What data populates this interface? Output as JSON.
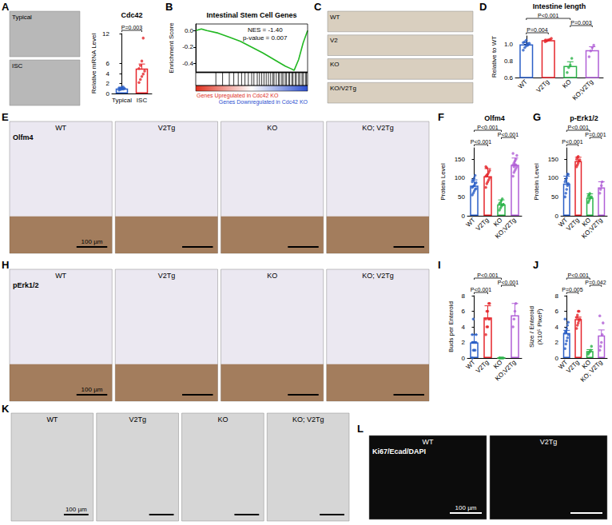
{
  "chart_data": [
    {
      "type": "bar",
      "title": "Cdc42",
      "y_label": "Relative mRNA Level",
      "categories": [
        "Typical",
        "ISC"
      ],
      "colors": [
        "#2b5fc7",
        "#e5252b"
      ],
      "values": [
        1.0,
        5.0
      ],
      "errors": [
        0.1,
        0.9
      ],
      "points": [
        [
          0.7,
          0.8,
          0.9,
          0.9,
          1.0,
          1.1,
          1.1,
          1.2,
          1.3
        ],
        [
          2.2,
          2.8,
          3.4,
          3.9,
          4.5,
          5.0,
          5.6,
          6.5,
          11.1
        ]
      ],
      "ylim": [
        0,
        12
      ],
      "yticks": [
        0,
        2,
        4,
        6,
        12
      ],
      "annotations": [
        {
          "groups": [
            0,
            1
          ],
          "text": "P=0.003"
        }
      ]
    },
    {
      "type": "line",
      "panel_label": "B",
      "title": "Intestinal Stem Cell Genes",
      "y_label": "Enrichment Score",
      "x": [
        0,
        5,
        10,
        20,
        30,
        40,
        50,
        60,
        70,
        80,
        85,
        88,
        92,
        96,
        100
      ],
      "values": [
        0,
        0.02,
        0.0,
        -0.03,
        -0.08,
        -0.13,
        -0.2,
        -0.27,
        -0.35,
        -0.43,
        -0.46,
        -0.48,
        -0.35,
        -0.15,
        0
      ],
      "color": "#22b822",
      "xlim": [
        0,
        100
      ],
      "ylim": [
        -0.5,
        0.08
      ],
      "yticks": [
        {
          "value": 0,
          "label": "0.0"
        },
        -0.2,
        -0.4
      ],
      "tick_labels": "y",
      "hits": [
        18,
        24,
        30,
        34,
        38,
        41,
        44,
        47,
        50,
        52,
        55,
        57,
        59,
        61,
        63,
        65,
        67,
        69,
        70,
        72,
        74,
        75,
        77,
        78,
        80,
        81,
        83,
        84,
        86,
        87,
        89,
        90,
        92,
        93,
        95,
        96,
        98,
        99
      ],
      "annotations": [
        "NES = -1.40",
        "p-value = 0.007"
      ],
      "gradient_labels": [
        "Genes Upregulated in Cdc42 KO",
        "Genes Downregulated in Cdc42 KO"
      ]
    },
    {
      "type": "bar",
      "panel_label": "D",
      "title": "Intestine length",
      "y_label": "Relative to WT",
      "categories": [
        "WT",
        "V2Tg",
        "KO",
        "KO;V2Tg"
      ],
      "colors": [
        "#2b5fc7",
        "#e5252b",
        "#2cb34a",
        "#b05fd6"
      ],
      "values": [
        1.0,
        1.05,
        0.74,
        0.93
      ],
      "errors": [
        0.02,
        0.01,
        0.05,
        0.04
      ],
      "points": [
        [
          0.93,
          0.96,
          0.98,
          1.0,
          1.01,
          1.02,
          1.03,
          1.05,
          0.99
        ],
        [
          1.03,
          1.04,
          1.05,
          1.06,
          1.07,
          1.05
        ],
        [
          0.66,
          0.72,
          0.75,
          0.83
        ],
        [
          0.85,
          0.92,
          0.96,
          0.99
        ]
      ],
      "ylim": [
        0.6,
        1.1
      ],
      "yticks": [
        0.6,
        0.8,
        {
          "value": 1,
          "label": "1.0"
        }
      ],
      "annotations": [
        {
          "groups": [
            0,
            1
          ],
          "text": "P=0.004"
        },
        {
          "groups": [
            2,
            3
          ],
          "text": "P=0.003"
        },
        {
          "groups": [
            0,
            2
          ],
          "text": "P<0.001"
        }
      ]
    },
    {
      "type": "bar",
      "panel_label": "F",
      "title": "Olfm4",
      "y_label": "Protein Level",
      "categories": [
        "WT",
        "V2Tg",
        "KO",
        "KO;V2Tg"
      ],
      "colors": [
        "#2b5fc7",
        "#e5252b",
        "#2cb34a",
        "#b05fd6"
      ],
      "values": [
        80,
        105,
        30,
        135
      ],
      "errors": [
        15,
        20,
        12,
        18
      ],
      "points": [
        [
          55,
          60,
          65,
          70,
          72,
          75,
          78,
          80,
          85,
          88,
          90,
          95,
          100,
          107
        ],
        [
          75,
          85,
          90,
          95,
          100,
          105,
          108,
          110,
          115,
          120,
          130,
          127
        ],
        [
          15,
          20,
          25,
          28,
          30,
          32,
          35,
          40,
          45,
          30
        ],
        [
          105,
          115,
          120,
          125,
          130,
          135,
          140,
          145,
          150,
          160,
          165,
          130,
          135,
          135
        ]
      ],
      "ylim": [
        0,
        180
      ],
      "yticks": [
        0,
        50,
        100,
        150
      ],
      "annotations": [
        {
          "groups": [
            0,
            1
          ],
          "text": "P<0.001"
        },
        {
          "groups": [
            2,
            3
          ],
          "text": "P<0.001"
        },
        {
          "groups": [
            0,
            2
          ],
          "text": "P<0.001"
        }
      ]
    },
    {
      "type": "bar",
      "panel_label": "G",
      "title": "p-Erk1/2",
      "y_label": "Protein Level",
      "categories": [
        "WT",
        "V2Tg",
        "KO",
        "KO;V2Tg"
      ],
      "colors": [
        "#2b5fc7",
        "#e5252b",
        "#2cb34a",
        "#b05fd6"
      ],
      "values": [
        85,
        145,
        48,
        75
      ],
      "errors": [
        20,
        10,
        10,
        15
      ],
      "points": [
        [
          50,
          60,
          70,
          80,
          85,
          90,
          95,
          100,
          110,
          110
        ],
        [
          130,
          135,
          140,
          145,
          148,
          150,
          155,
          157
        ],
        [
          35,
          40,
          45,
          48,
          50,
          52,
          55,
          59
        ],
        [
          60,
          70,
          80,
          90
        ]
      ],
      "ylim": [
        0,
        180
      ],
      "yticks": [
        0,
        50,
        100,
        150
      ],
      "annotations": [
        {
          "groups": [
            0,
            1
          ],
          "text": "P<0.001"
        },
        {
          "groups": [
            2,
            3
          ],
          "text": "P=0.001"
        },
        {
          "groups": [
            0,
            2
          ],
          "text": "P<0.001"
        }
      ]
    },
    {
      "type": "bar",
      "panel_label": "I",
      "y_label": "Buds per Enteroid",
      "categories": [
        "WT",
        "V2Tg",
        "KO",
        "KO;V2Tg"
      ],
      "colors": [
        "#2b5fc7",
        "#e5252b",
        "#2cb34a",
        "#b05fd6"
      ],
      "values": [
        2.0,
        5.2,
        0,
        5.5
      ],
      "errors": [
        1.0,
        1.5,
        0,
        1.5
      ],
      "points": [
        [
          0,
          1,
          1,
          1,
          2,
          2,
          2,
          2,
          2,
          3,
          3,
          5
        ],
        [
          3,
          4,
          4,
          5,
          5,
          5,
          6,
          6,
          7,
          7
        ],
        [
          0,
          0,
          0,
          0,
          0,
          0
        ],
        [
          4,
          5,
          6,
          7
        ]
      ],
      "ylim": [
        0,
        8
      ],
      "yticks": [
        0,
        2,
        4,
        6,
        8
      ],
      "annotations": [
        {
          "groups": [
            0,
            1
          ],
          "text": "P<0.001"
        },
        {
          "groups": [
            2,
            3
          ],
          "text": "P<0.001"
        },
        {
          "groups": [
            0,
            2
          ],
          "text": "P<0.001"
        }
      ]
    },
    {
      "type": "bar",
      "panel_label": "J",
      "y_label": "Size / Enteroid\n(X10⁵ Pixel²)",
      "categories": [
        "WT",
        "V2Tg",
        "KO",
        "KO; V2Tg"
      ],
      "colors": [
        "#2b5fc7",
        "#e5252b",
        "#2cb34a",
        "#b05fd6"
      ],
      "values": [
        3.2,
        5.0,
        0.9,
        2.9
      ],
      "errors": [
        0.35,
        0.25,
        0.18,
        0.7
      ],
      "points": [
        [
          1.2,
          1.8,
          2.2,
          2.6,
          3.0,
          3.2,
          3.4,
          3.8,
          4.2,
          4.6,
          5.0,
          3.4
        ],
        [
          3.8,
          4.2,
          4.5,
          4.8,
          5.0,
          5.2,
          5.5,
          6.0,
          6.0
        ],
        [
          0.5,
          0.7,
          0.8,
          1.0,
          1.5
        ],
        [
          1.0,
          1.5,
          2.0,
          3.0,
          4.5,
          5.4
        ]
      ],
      "ylim": [
        0,
        8
      ],
      "yticks": [
        0,
        2,
        4,
        6,
        8
      ],
      "annotations": [
        {
          "groups": [
            0,
            1
          ],
          "text": "P=0.005"
        },
        {
          "groups": [
            2,
            3
          ],
          "text": "P=0.042"
        },
        {
          "groups": [
            0,
            2
          ],
          "text": "P<0.001"
        }
      ]
    }
  ],
  "image_panels": [
    {
      "panel_label": "A",
      "tiles": [
        "Typical",
        "ISC"
      ]
    },
    {
      "panel_label": "C",
      "tiles": [
        "WT",
        "V2",
        "KO",
        "KO/V2Tg"
      ]
    },
    {
      "panel_label": "E",
      "stain": "Olfm4",
      "tiles": [
        "WT",
        "V2Tg",
        "KO",
        "KO; V2Tg"
      ],
      "scale_bar": "100 µm"
    },
    {
      "panel_label": "H",
      "stain": "pErk1/2",
      "tiles": [
        "WT",
        "V2Tg",
        "KO",
        "KO; V2Tg"
      ],
      "scale_bar": "100 µm"
    },
    {
      "panel_label": "K",
      "tiles": [
        "WT",
        "V2Tg",
        "KO",
        "KO; V2Tg"
      ],
      "scale_bar": "100 µm"
    },
    {
      "panel_label": "L",
      "stain": "Ki67/Ecad/DAPI",
      "tiles": [
        "WT",
        "V2Tg"
      ],
      "scale_bar": "100 µm"
    }
  ]
}
